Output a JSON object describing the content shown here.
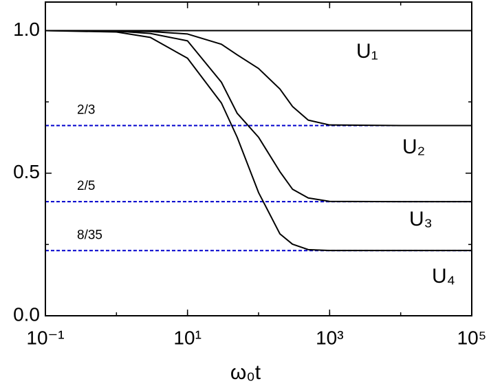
{
  "chart_data": {
    "type": "line",
    "x_label": "ω₀t",
    "log_x": true,
    "xlim": [
      0.1,
      100000
    ],
    "ylim": [
      0,
      1.1
    ],
    "xticks": [
      {
        "value": 0.1,
        "label": "10⁻¹"
      },
      {
        "value": 10,
        "label": "10¹"
      },
      {
        "value": 1000,
        "label": "10³"
      },
      {
        "value": 100000,
        "label": "10⁵"
      }
    ],
    "yticks": [
      {
        "value": 0,
        "label": "0.0"
      },
      {
        "value": 0.5,
        "label": "0.5"
      },
      {
        "value": 1,
        "label": "1.0"
      }
    ],
    "x": [
      0.1,
      1,
      3,
      10,
      30,
      50,
      100,
      200,
      300,
      500,
      1000,
      10000,
      100000
    ],
    "series": [
      {
        "name": "U₁",
        "color": "#000000",
        "values": [
          1,
          1,
          1,
          1,
          1,
          1,
          1,
          1,
          1,
          1,
          1,
          1,
          1
        ]
      },
      {
        "name": "U₂",
        "color": "#000000",
        "values": [
          1,
          0.999,
          0.997,
          0.988,
          0.952,
          0.915,
          0.867,
          0.795,
          0.734,
          0.686,
          0.669,
          0.667,
          0.667
        ]
      },
      {
        "name": "U₃",
        "color": "#000000",
        "values": [
          1,
          0.998,
          0.99,
          0.964,
          0.819,
          0.71,
          0.626,
          0.505,
          0.444,
          0.413,
          0.401,
          0.4,
          0.4
        ]
      },
      {
        "name": "U₄",
        "color": "#000000",
        "values": [
          1,
          0.995,
          0.976,
          0.903,
          0.746,
          0.626,
          0.432,
          0.287,
          0.251,
          0.232,
          0.229,
          0.229,
          0.229
        ]
      }
    ],
    "reference_lines": [
      {
        "value": 1
      },
      {
        "value": 0.667,
        "label": "2/3"
      },
      {
        "value": 0.4,
        "label": "2/5"
      },
      {
        "value": 0.2286,
        "label": "8/35"
      }
    ],
    "reference_color": "#0000cc"
  }
}
